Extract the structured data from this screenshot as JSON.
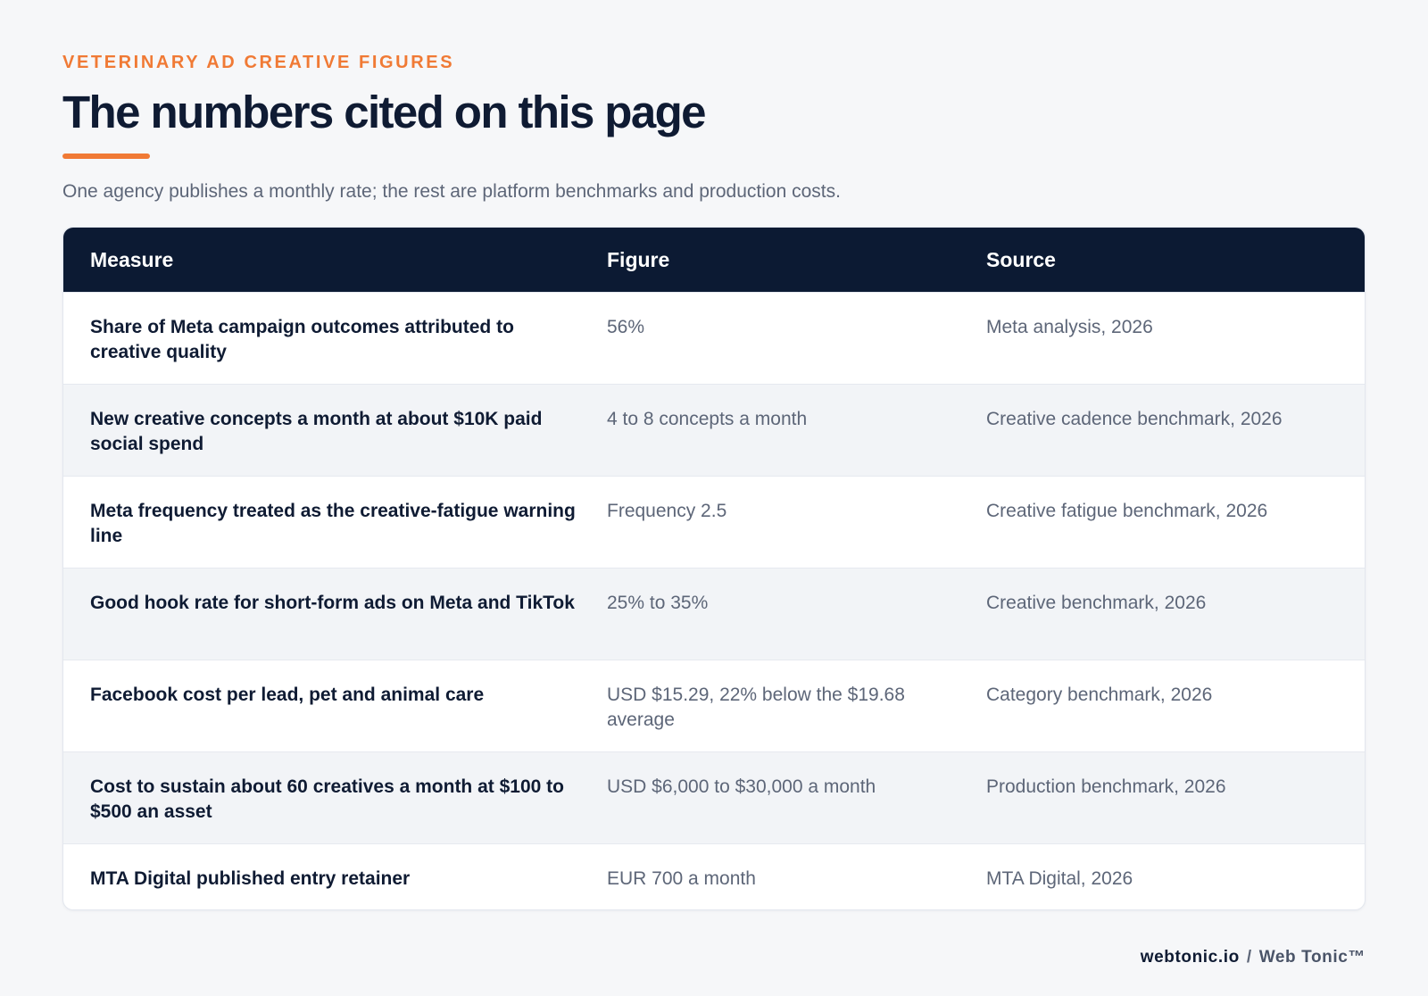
{
  "header": {
    "eyebrow": "VETERINARY AD CREATIVE FIGURES",
    "title": "The numbers cited on this page",
    "subtitle": "One agency publishes a monthly rate; the rest are platform benchmarks and production costs."
  },
  "table": {
    "columns": [
      "Measure",
      "Figure",
      "Source"
    ],
    "rows": [
      {
        "measure": "Share of Meta campaign outcomes attributed to creative quality",
        "figure": "56%",
        "source": "Meta analysis, 2026"
      },
      {
        "measure": "New creative concepts a month at about $10K paid social spend",
        "figure": "4 to 8 concepts a month",
        "source": "Creative cadence benchmark, 2026"
      },
      {
        "measure": "Meta frequency treated as the creative-fatigue warning line",
        "figure": "Frequency 2.5",
        "source": "Creative fatigue benchmark, 2026"
      },
      {
        "measure": "Good hook rate for short-form ads on Meta and TikTok",
        "figure": "25% to 35%",
        "source": "Creative benchmark, 2026"
      },
      {
        "measure": "Facebook cost per lead, pet and animal care",
        "figure": "USD $15.29, 22% below the $19.68 average",
        "source": "Category benchmark, 2026"
      },
      {
        "measure": "Cost to sustain about 60 creatives a month at $100 to $500 an asset",
        "figure": "USD $6,000 to $30,000 a month",
        "source": "Production benchmark, 2026"
      },
      {
        "measure": "MTA Digital published entry retainer",
        "figure": "EUR 700 a month",
        "source": "MTA Digital, 2026"
      }
    ]
  },
  "footer": {
    "domain": "webtonic.io",
    "separator": "/",
    "brand": "Web Tonic™"
  },
  "colors": {
    "accent": "#f07a35",
    "header_bg": "#0c1a33",
    "page_bg": "#f6f7f9"
  }
}
